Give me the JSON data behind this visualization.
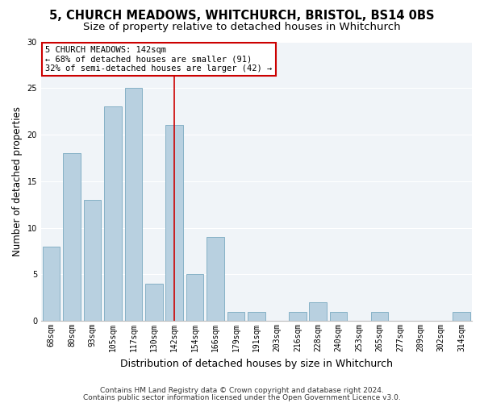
{
  "title": "5, CHURCH MEADOWS, WHITCHURCH, BRISTOL, BS14 0BS",
  "subtitle": "Size of property relative to detached houses in Whitchurch",
  "xlabel": "Distribution of detached houses by size in Whitchurch",
  "ylabel": "Number of detached properties",
  "categories": [
    "68sqm",
    "80sqm",
    "93sqm",
    "105sqm",
    "117sqm",
    "130sqm",
    "142sqm",
    "154sqm",
    "166sqm",
    "179sqm",
    "191sqm",
    "203sqm",
    "216sqm",
    "228sqm",
    "240sqm",
    "253sqm",
    "265sqm",
    "277sqm",
    "289sqm",
    "302sqm",
    "314sqm"
  ],
  "values": [
    8,
    18,
    13,
    23,
    25,
    4,
    21,
    5,
    9,
    1,
    1,
    0,
    1,
    2,
    1,
    0,
    1,
    0,
    0,
    0,
    1
  ],
  "highlight_index": 6,
  "bar_color": "#b8d0e0",
  "bar_edge_color": "#7aaac0",
  "highlight_line_color": "#cc0000",
  "annotation_text": "5 CHURCH MEADOWS: 142sqm\n← 68% of detached houses are smaller (91)\n32% of semi-detached houses are larger (42) →",
  "annotation_box_color": "#ffffff",
  "annotation_box_edge_color": "#cc0000",
  "ylim": [
    0,
    30
  ],
  "yticks": [
    0,
    5,
    10,
    15,
    20,
    25,
    30
  ],
  "footer_line1": "Contains HM Land Registry data © Crown copyright and database right 2024.",
  "footer_line2": "Contains public sector information licensed under the Open Government Licence v3.0.",
  "bg_color": "#ffffff",
  "plot_bg_color": "#f0f4f8",
  "grid_color": "#ffffff",
  "title_fontsize": 10.5,
  "subtitle_fontsize": 9.5,
  "xlabel_fontsize": 9,
  "ylabel_fontsize": 8.5,
  "tick_fontsize": 7,
  "annotation_fontsize": 7.5,
  "footer_fontsize": 6.5
}
